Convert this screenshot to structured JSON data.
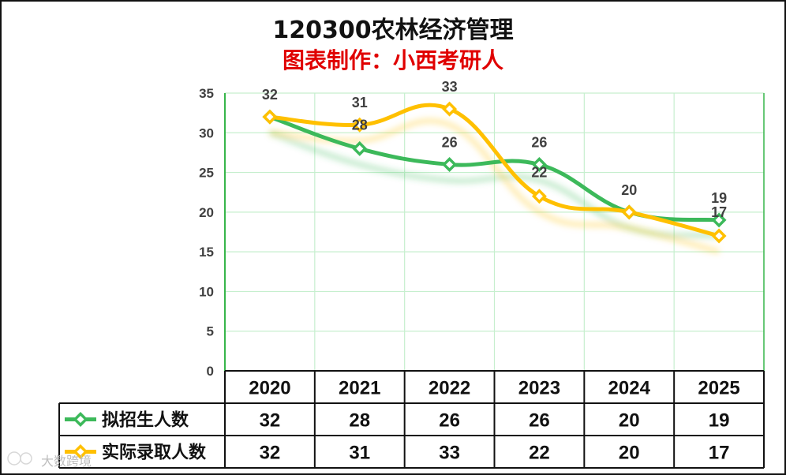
{
  "title": "120300农林经济管理",
  "subtitle": "图表制作：小西考研人",
  "watermark": "大数跨境",
  "colors": {
    "title": "#111111",
    "subtitle": "#e00000",
    "grid": "#c6efce",
    "axis": "#37b54a"
  },
  "chart_data": {
    "type": "line",
    "title": "120300农林经济管理",
    "subtitle": "图表制作：小西考研人",
    "categories": [
      "2020",
      "2021",
      "2022",
      "2023",
      "2024",
      "2025"
    ],
    "ylim": [
      0,
      35
    ],
    "yticks": [
      0,
      5,
      10,
      15,
      20,
      25,
      30,
      35
    ],
    "ytick_labels": [
      "0",
      "5",
      "10",
      "15",
      "20",
      "25",
      "30",
      "35"
    ],
    "grid": true,
    "smooth": true,
    "legend_placement": "data-table",
    "series": [
      {
        "name": "拟招生人数",
        "values": [
          32,
          28,
          26,
          26,
          20,
          19
        ],
        "labels": [
          "32",
          "28",
          "26",
          "26",
          "20",
          "19"
        ],
        "color": "#3cb95a",
        "marker": "diamond"
      },
      {
        "name": "实际录取人数",
        "values": [
          32,
          31,
          33,
          22,
          20,
          17
        ],
        "labels": [
          "32",
          "31",
          "33",
          "22",
          "20",
          "17"
        ],
        "color": "#ffc000",
        "marker": "diamond"
      }
    ]
  }
}
